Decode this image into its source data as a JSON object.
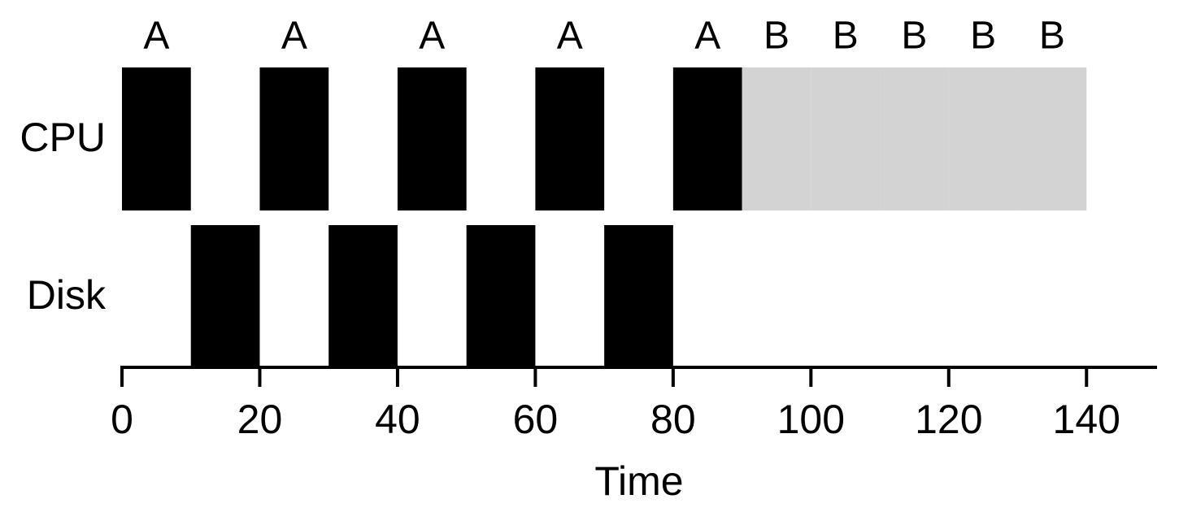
{
  "chart_data": {
    "type": "gantt",
    "xlabel": "Time",
    "xlim": [
      0,
      150
    ],
    "xticks": [
      0,
      20,
      40,
      60,
      80,
      100,
      120,
      140
    ],
    "rows": [
      {
        "name": "CPU",
        "segments": [
          {
            "start": 0,
            "end": 10,
            "label": "A",
            "color": "#000000"
          },
          {
            "start": 20,
            "end": 30,
            "label": "A",
            "color": "#000000"
          },
          {
            "start": 40,
            "end": 50,
            "label": "A",
            "color": "#000000"
          },
          {
            "start": 60,
            "end": 70,
            "label": "A",
            "color": "#000000"
          },
          {
            "start": 80,
            "end": 90,
            "label": "A",
            "color": "#000000"
          },
          {
            "start": 90,
            "end": 100,
            "label": "B",
            "color": "#d3d3d3"
          },
          {
            "start": 100,
            "end": 110,
            "label": "B",
            "color": "#d3d3d3"
          },
          {
            "start": 110,
            "end": 120,
            "label": "B",
            "color": "#d3d3d3"
          },
          {
            "start": 120,
            "end": 130,
            "label": "B",
            "color": "#d3d3d3"
          },
          {
            "start": 130,
            "end": 140,
            "label": "B",
            "color": "#d3d3d3"
          }
        ]
      },
      {
        "name": "Disk",
        "segments": [
          {
            "start": 10,
            "end": 20,
            "color": "#000000"
          },
          {
            "start": 30,
            "end": 40,
            "color": "#000000"
          },
          {
            "start": 50,
            "end": 60,
            "color": "#000000"
          },
          {
            "start": 70,
            "end": 80,
            "color": "#000000"
          }
        ]
      }
    ]
  }
}
